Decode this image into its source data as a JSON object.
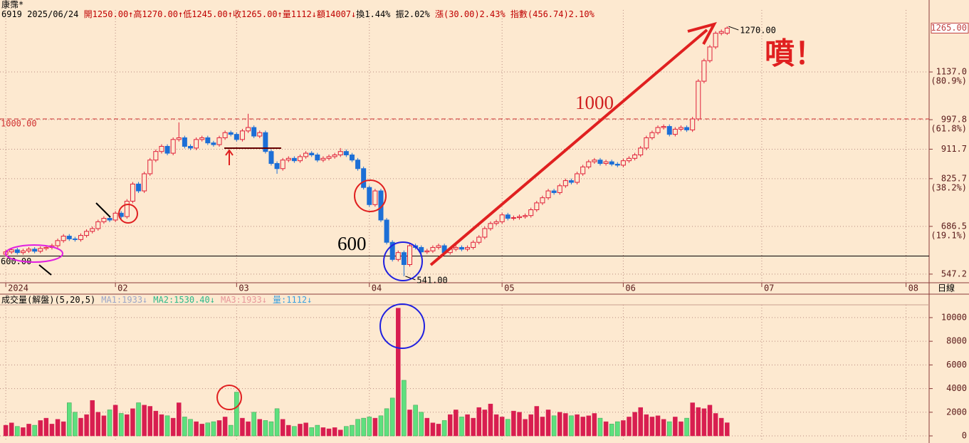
{
  "header": {
    "title": "康霈*",
    "info": [
      {
        "text": "6919 2025/06/24 ",
        "color": "#000000"
      },
      {
        "text": "開1250.00↑高1270.00↑低1245.00↑收1265.00↑量1112↓額14007↓",
        "color": "#c00000"
      },
      {
        "text": "換1.44% 振2.02% ",
        "color": "#000000"
      },
      {
        "text": "漲(30.00)2.43% 指數(456.74)2.10%",
        "color": "#c00000"
      }
    ],
    "volume_title": "成交量(解盤)(5,20,5)",
    "volume_ma": [
      {
        "text": "MA1:1933↓",
        "color": "#9aa6c8"
      },
      {
        "text": "MA2:1530.40↓",
        "color": "#2bb98a"
      },
      {
        "text": "MA3:1933↓",
        "color": "#e8959a"
      },
      {
        "text": "量:1112↓",
        "color": "#3aa0e0"
      }
    ],
    "period": "日線"
  },
  "annotations": {
    "level_high": "1000",
    "level_low": "600",
    "burst": "噴！"
  },
  "chart_data": [
    {
      "type": "candlestick",
      "open": [
        605,
        612,
        618,
        610,
        615,
        620,
        614,
        622,
        625,
        630,
        645,
        658,
        650,
        648,
        660,
        672,
        680,
        700,
        710,
        705,
        725,
        715,
        760,
        810,
        790,
        840,
        880,
        905,
        920,
        900,
        940,
        945,
        920,
        915,
        940,
        945,
        930,
        925,
        945,
        960,
        955,
        940,
        965,
        975,
        950,
        960,
        905,
        870,
        855,
        880,
        885,
        878,
        890,
        900,
        895,
        880,
        885,
        890,
        895,
        905,
        895,
        880,
        855,
        800,
        750,
        790,
        705,
        640,
        590,
        610,
        575,
        630,
        625,
        612,
        615,
        625,
        630,
        610,
        620,
        625,
        620,
        625,
        640,
        655,
        680,
        695,
        700,
        720,
        710,
        712,
        715,
        718,
        735,
        755,
        770,
        790,
        785,
        805,
        820,
        815,
        840,
        860,
        875,
        880,
        870,
        875,
        868,
        865,
        878,
        885,
        895,
        915,
        945,
        960,
        975,
        978,
        955,
        970,
        975,
        968,
        1000,
        1110,
        1170,
        1210,
        1250,
        1250
      ],
      "high": [
        618,
        624,
        624,
        621,
        626,
        626,
        628,
        631,
        636,
        651,
        664,
        664,
        656,
        666,
        678,
        686,
        706,
        716,
        716,
        731,
        731,
        766,
        816,
        816,
        846,
        886,
        911,
        926,
        926,
        946,
        990,
        951,
        926,
        946,
        951,
        951,
        936,
        951,
        966,
        966,
        961,
        971,
        1015,
        981,
        966,
        966,
        911,
        876,
        886,
        891,
        891,
        896,
        906,
        906,
        901,
        891,
        896,
        901,
        915,
        911,
        901,
        886,
        861,
        806,
        796,
        796,
        711,
        646,
        616,
        616,
        636,
        636,
        631,
        621,
        631,
        636,
        636,
        626,
        631,
        631,
        631,
        646,
        661,
        686,
        701,
        706,
        726,
        726,
        718,
        721,
        724,
        741,
        761,
        776,
        796,
        796,
        811,
        826,
        826,
        846,
        866,
        881,
        886,
        886,
        881,
        881,
        874,
        884,
        891,
        901,
        921,
        951,
        966,
        981,
        984,
        984,
        976,
        981,
        981,
        1006,
        1116,
        1176,
        1216,
        1256,
        1261,
        1270
      ],
      "low": [
        599,
        606,
        604,
        604,
        609,
        608,
        608,
        616,
        619,
        624,
        639,
        644,
        642,
        642,
        654,
        666,
        674,
        694,
        699,
        699,
        709,
        709,
        754,
        784,
        784,
        834,
        874,
        899,
        894,
        894,
        934,
        914,
        909,
        909,
        934,
        924,
        919,
        919,
        939,
        949,
        934,
        934,
        959,
        944,
        944,
        899,
        864,
        840,
        849,
        874,
        872,
        872,
        884,
        889,
        874,
        874,
        879,
        884,
        889,
        889,
        874,
        849,
        794,
        744,
        744,
        699,
        634,
        584,
        584,
        541,
        569,
        619,
        606,
        606,
        609,
        619,
        604,
        604,
        614,
        614,
        614,
        619,
        634,
        649,
        674,
        689,
        694,
        704,
        704,
        706,
        709,
        712,
        729,
        749,
        764,
        779,
        779,
        799,
        809,
        809,
        834,
        854,
        869,
        864,
        864,
        862,
        859,
        859,
        872,
        879,
        889,
        909,
        939,
        954,
        969,
        949,
        949,
        964,
        962,
        962,
        994,
        1104,
        1164,
        1204,
        1244,
        1245
      ],
      "close": [
        612,
        618,
        610,
        615,
        620,
        614,
        622,
        625,
        630,
        645,
        658,
        650,
        648,
        660,
        672,
        680,
        700,
        710,
        705,
        725,
        715,
        760,
        810,
        790,
        840,
        880,
        905,
        920,
        900,
        940,
        945,
        920,
        915,
        940,
        945,
        930,
        925,
        945,
        960,
        955,
        940,
        965,
        975,
        950,
        960,
        905,
        870,
        855,
        880,
        885,
        878,
        890,
        900,
        895,
        880,
        885,
        890,
        895,
        905,
        895,
        880,
        855,
        800,
        750,
        790,
        705,
        640,
        590,
        610,
        575,
        630,
        625,
        612,
        615,
        625,
        630,
        610,
        620,
        625,
        620,
        625,
        640,
        655,
        680,
        695,
        700,
        720,
        710,
        712,
        715,
        718,
        735,
        755,
        770,
        790,
        785,
        805,
        820,
        815,
        840,
        860,
        875,
        880,
        870,
        875,
        868,
        865,
        878,
        885,
        895,
        915,
        945,
        960,
        975,
        978,
        955,
        970,
        975,
        968,
        1000,
        1110,
        1170,
        1210,
        1250,
        1255,
        1265
      ],
      "up_color": "#e0203a",
      "down_color": "#1c6fd6",
      "xlim": [
        -1,
        160
      ],
      "ylim": [
        522,
        1347
      ],
      "xticks": [
        {
          "value": 0,
          "label": "2024"
        },
        {
          "value": 19,
          "label": "02"
        },
        {
          "value": 40,
          "label": "03"
        },
        {
          "value": 63,
          "label": "04"
        },
        {
          "value": 86,
          "label": "05"
        },
        {
          "value": 107,
          "label": "06"
        },
        {
          "value": 131,
          "label": "07"
        },
        {
          "value": 156,
          "label": "08"
        }
      ],
      "yticks": [
        547.2,
        {
          "value": 686.5,
          "label": "686.5",
          "sub": "(19.1%)"
        },
        {
          "value": 825.7,
          "label": "825.7",
          "sub": "(38.2%)"
        },
        911.7,
        {
          "value": 997.8,
          "label": "997.8",
          "sub": "(61.8%)"
        },
        {
          "value": 1137,
          "label": "1137.0",
          "sub": "(80.9%)"
        }
      ],
      "last_price": {
        "value": 1265,
        "label": "1265.00"
      },
      "hlines": [
        {
          "value": 1000,
          "label": "1000.00",
          "color": "#d03030",
          "dashed": true
        },
        {
          "value": 600,
          "label": "600.00",
          "color": "#000000",
          "dashed": false
        }
      ],
      "callouts": [
        {
          "index": 125,
          "value": 1270,
          "label": "1270.00"
        },
        {
          "index": 69,
          "value": 541,
          "label": "541.00"
        }
      ],
      "grid": true
    },
    {
      "type": "bar",
      "values": [
        900,
        1100,
        800,
        700,
        1000,
        900,
        1300,
        1500,
        1000,
        1400,
        1200,
        2800,
        2000,
        1500,
        1800,
        3000,
        2000,
        1700,
        2200,
        2600,
        1900,
        1800,
        2300,
        2800,
        2600,
        2500,
        2100,
        1800,
        1700,
        1500,
        2800,
        1600,
        1400,
        1200,
        1000,
        1100,
        1200,
        1300,
        1600,
        900,
        3700,
        1500,
        1200,
        2000,
        1400,
        1300,
        1200,
        2300,
        1400,
        900,
        800,
        1000,
        1100,
        700,
        900,
        700,
        600,
        700,
        500,
        800,
        900,
        1400,
        1500,
        1600,
        1500,
        1700,
        2300,
        3200,
        10800,
        4700,
        2200,
        2600,
        2000,
        1500,
        1100,
        1000,
        1300,
        1800,
        2200,
        1600,
        1800,
        1500,
        2400,
        2200,
        2700,
        1800,
        1600,
        1400,
        2100,
        2000,
        1400,
        1800,
        2500,
        1600,
        2200,
        1700,
        2000,
        1900,
        1700,
        1800,
        1600,
        1700,
        1900,
        1500,
        1200,
        1000,
        1200,
        1300,
        1600,
        2000,
        2400,
        1800,
        1600,
        1700,
        1400,
        1200,
        1600,
        1200,
        1500,
        2800,
        2400,
        2300,
        2600,
        1900,
        1500,
        1112
      ],
      "up_color": "#d81e50",
      "down_color": "#5ee07e",
      "ylim": [
        -360,
        11080
      ],
      "yticks": [
        0,
        2000,
        4000,
        6000,
        8000,
        10000
      ],
      "grid": true
    }
  ]
}
